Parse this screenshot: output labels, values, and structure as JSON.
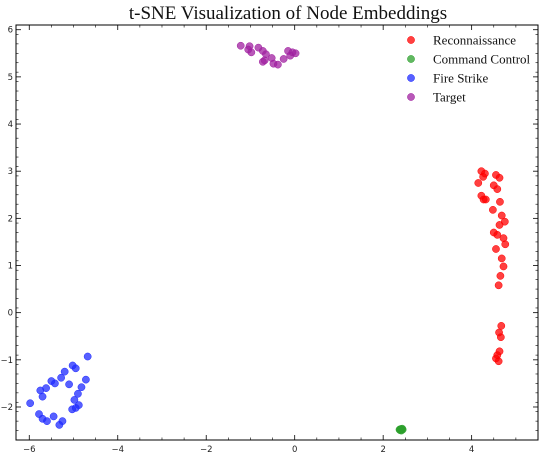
{
  "chart_data": {
    "type": "scatter",
    "title": "t-SNE Visualization of Node Embeddings",
    "xlabel": "",
    "ylabel": "",
    "xlim": [
      -6.3,
      5.5
    ],
    "ylim": [
      -2.7,
      6.1
    ],
    "x_ticks": [
      -6,
      -4,
      -2,
      0,
      2,
      4
    ],
    "y_ticks": [
      -2,
      -1,
      0,
      1,
      2,
      3,
      4,
      5,
      6
    ],
    "x_tick_labels": [
      "−6",
      "−4",
      "−2",
      "0",
      "2",
      "4"
    ],
    "y_tick_labels": [
      "−2",
      "−1",
      "0",
      "1",
      "2",
      "3",
      "4",
      "5",
      "6"
    ],
    "grid": false,
    "legend_position": "top-right",
    "series": [
      {
        "name": "Reconnaissance",
        "color": "#ff0000",
        "points": [
          [
            4.22,
            3.0
          ],
          [
            4.3,
            2.95
          ],
          [
            4.55,
            2.92
          ],
          [
            4.63,
            2.86
          ],
          [
            4.26,
            2.88
          ],
          [
            4.15,
            2.75
          ],
          [
            4.5,
            2.7
          ],
          [
            4.58,
            2.62
          ],
          [
            4.22,
            2.48
          ],
          [
            4.32,
            2.4
          ],
          [
            4.27,
            2.4
          ],
          [
            4.64,
            2.35
          ],
          [
            4.48,
            2.18
          ],
          [
            4.68,
            2.06
          ],
          [
            4.75,
            1.93
          ],
          [
            4.63,
            1.86
          ],
          [
            4.5,
            1.7
          ],
          [
            4.58,
            1.65
          ],
          [
            4.72,
            1.58
          ],
          [
            4.76,
            1.45
          ],
          [
            4.55,
            1.35
          ],
          [
            4.68,
            1.15
          ],
          [
            4.72,
            0.98
          ],
          [
            4.65,
            0.78
          ],
          [
            4.61,
            0.58
          ],
          [
            4.67,
            -0.28
          ],
          [
            4.62,
            -0.42
          ],
          [
            4.66,
            -0.52
          ],
          [
            4.63,
            -0.82
          ],
          [
            4.58,
            -0.9
          ],
          [
            4.55,
            -0.97
          ],
          [
            4.61,
            -1.03
          ]
        ]
      },
      {
        "name": "Command Control",
        "color": "#2ca02c",
        "points": [
          [
            2.4,
            -2.47
          ],
          [
            2.42,
            -2.48
          ],
          [
            2.38,
            -2.49
          ],
          [
            2.43,
            -2.46
          ],
          [
            2.41,
            -2.5
          ],
          [
            2.39,
            -2.47
          ],
          [
            2.44,
            -2.48
          ],
          [
            2.37,
            -2.48
          ]
        ]
      },
      {
        "name": "Fire Strike",
        "color": "#1f2bff",
        "points": [
          [
            -4.68,
            -0.93
          ],
          [
            -5.02,
            -1.12
          ],
          [
            -4.95,
            -1.18
          ],
          [
            -5.2,
            -1.25
          ],
          [
            -5.28,
            -1.38
          ],
          [
            -4.72,
            -1.42
          ],
          [
            -5.5,
            -1.45
          ],
          [
            -5.42,
            -1.5
          ],
          [
            -5.1,
            -1.52
          ],
          [
            -4.82,
            -1.58
          ],
          [
            -5.62,
            -1.6
          ],
          [
            -5.75,
            -1.65
          ],
          [
            -5.7,
            -1.78
          ],
          [
            -4.9,
            -1.72
          ],
          [
            -4.98,
            -1.85
          ],
          [
            -5.98,
            -1.92
          ],
          [
            -4.88,
            -1.96
          ],
          [
            -5.03,
            -2.05
          ],
          [
            -5.78,
            -2.15
          ],
          [
            -5.45,
            -2.2
          ],
          [
            -5.7,
            -2.25
          ],
          [
            -5.6,
            -2.3
          ],
          [
            -5.25,
            -2.3
          ],
          [
            -5.32,
            -2.38
          ],
          [
            -4.95,
            -2.02
          ]
        ]
      },
      {
        "name": "Target",
        "color": "#a020a0",
        "points": [
          [
            -1.22,
            5.66
          ],
          [
            -1.02,
            5.65
          ],
          [
            -0.82,
            5.62
          ],
          [
            -1.05,
            5.58
          ],
          [
            -0.98,
            5.52
          ],
          [
            -0.72,
            5.55
          ],
          [
            -0.65,
            5.48
          ],
          [
            -0.52,
            5.4
          ],
          [
            -0.68,
            5.35
          ],
          [
            -0.72,
            5.32
          ],
          [
            -0.48,
            5.28
          ],
          [
            -0.38,
            5.26
          ],
          [
            -0.25,
            5.38
          ],
          [
            -0.1,
            5.45
          ],
          [
            -0.05,
            5.52
          ],
          [
            0.02,
            5.5
          ],
          [
            -0.15,
            5.55
          ]
        ]
      }
    ]
  }
}
